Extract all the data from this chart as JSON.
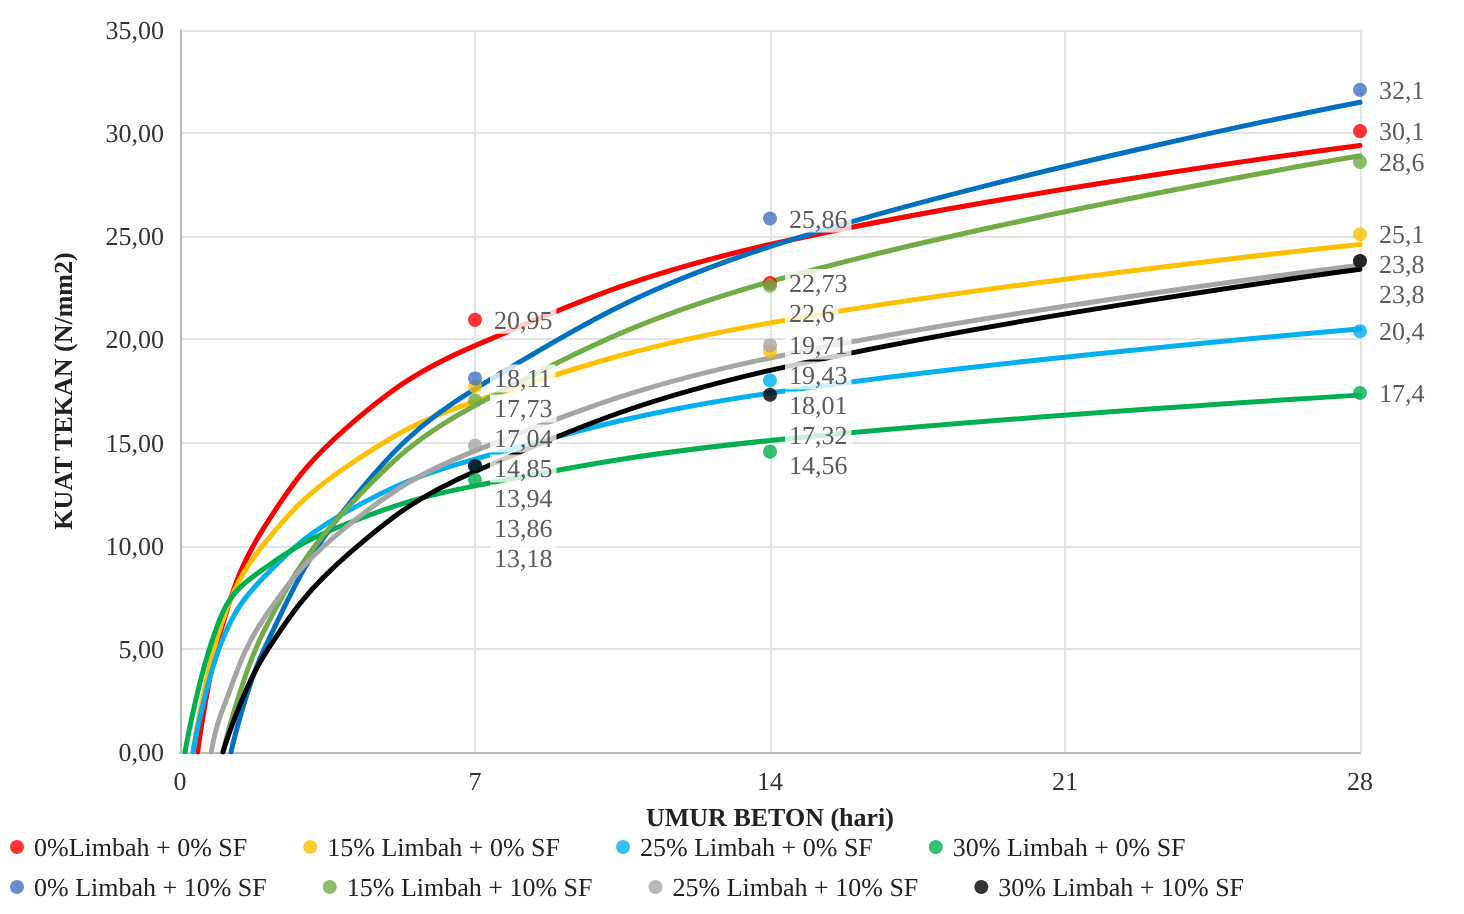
{
  "chart_data": {
    "type": "scatter",
    "xlabel": "UMUR BETON (hari)",
    "ylabel": "KUAT TEKAN (N/mm2)",
    "xlim": [
      0,
      28
    ],
    "xticks": [
      0,
      7,
      14,
      21,
      28
    ],
    "ylim": [
      0,
      35
    ],
    "yticks": [
      {
        "value": 0,
        "label": "0,00"
      },
      {
        "value": 5,
        "label": "5,00"
      },
      {
        "value": 10,
        "label": "10,00"
      },
      {
        "value": 15,
        "label": "15,00"
      },
      {
        "value": 20,
        "label": "20,00"
      },
      {
        "value": 25,
        "label": "25,00"
      },
      {
        "value": 30,
        "label": "30,00"
      },
      {
        "value": 35,
        "label": "35,00"
      }
    ],
    "grid": true,
    "legend": "bottom",
    "marker": "circle",
    "series": [
      {
        "name": "0%Limbah + 0% SF",
        "color": "#ff0000",
        "x": [
          7,
          14,
          28
        ],
        "values": [
          20.95,
          22.73,
          30.1
        ],
        "value_labels": [
          "20,95",
          "22,73",
          "30,1"
        ]
      },
      {
        "name": "15% Limbah + 0% SF",
        "color": "#ffc000",
        "x": [
          7,
          14,
          28
        ],
        "values": [
          17.73,
          19.43,
          25.1
        ],
        "value_labels": [
          "17,73",
          "19,43",
          "25,1"
        ]
      },
      {
        "name": "25% Limbah + 0% SF",
        "color": "#00b0f0",
        "x": [
          7,
          14,
          28
        ],
        "values": [
          13.94,
          18.01,
          20.4
        ],
        "value_labels": [
          "13,94",
          "18,01",
          "20,4"
        ]
      },
      {
        "name": "30% Limbah + 0% SF",
        "color": "#00b050",
        "x": [
          7,
          14,
          28
        ],
        "values": [
          13.18,
          14.56,
          17.4
        ],
        "value_labels": [
          "13,18",
          "14,56",
          "17,4"
        ]
      },
      {
        "name": "0% Limbah + 10% SF",
        "color": "#4472c4",
        "x": [
          7,
          14,
          28
        ],
        "values": [
          18.11,
          25.86,
          32.1
        ],
        "value_labels": [
          "18,11",
          "25,86",
          "32,1"
        ]
      },
      {
        "name": "15% Limbah + 10% SF",
        "color": "#70ad47",
        "x": [
          7,
          14,
          28
        ],
        "values": [
          17.04,
          22.6,
          28.6
        ],
        "value_labels": [
          "17,04",
          "22,6",
          "28,6"
        ]
      },
      {
        "name": "25% Limbah + 10% SF",
        "color": "#a5a5a5",
        "x": [
          7,
          14,
          28
        ],
        "values": [
          14.85,
          19.71,
          23.8
        ],
        "value_labels": [
          "14,85",
          "19,71",
          "23,8"
        ]
      },
      {
        "name": "30% Limbah + 10% SF",
        "color": "#000000",
        "x": [
          7,
          14,
          28
        ],
        "values": [
          13.86,
          17.32,
          23.8
        ],
        "value_labels": [
          "13,86",
          "17,32",
          "23,8"
        ]
      },
      {
        "type": "line",
        "color": "#ff0000",
        "marker": "none",
        "x": [
          0.42,
          1,
          2,
          4,
          7,
          14,
          28
        ],
        "values": [
          0,
          6.1,
          10.9,
          15.8,
          19.7,
          24.6,
          29.4
        ]
      },
      {
        "type": "line",
        "color": "#ffc000",
        "marker": "none",
        "x": [
          0.31,
          1,
          2,
          4,
          7,
          14,
          28
        ],
        "values": [
          0,
          6.3,
          10.1,
          13.9,
          17.0,
          20.8,
          24.6
        ]
      },
      {
        "type": "line",
        "color": "#00b0f0",
        "marker": "none",
        "x": [
          0.31,
          1,
          2,
          4,
          7,
          14,
          28
        ],
        "values": [
          0,
          5.4,
          8.5,
          11.7,
          14.2,
          17.4,
          20.5
        ]
      },
      {
        "type": "line",
        "color": "#00b050",
        "marker": "none",
        "x": [
          0.12,
          1,
          2,
          4,
          7,
          14,
          28
        ],
        "values": [
          0,
          6.7,
          8.9,
          11.1,
          12.9,
          15.1,
          17.3
        ]
      },
      {
        "type": "line",
        "color": "#0070c0",
        "marker": "none",
        "x": [
          1.21,
          2,
          4,
          7,
          14,
          28
        ],
        "values": [
          0,
          5.0,
          12.0,
          17.6,
          24.5,
          31.5
        ]
      },
      {
        "type": "line",
        "color": "#70ad47",
        "marker": "none",
        "x": [
          1.02,
          2,
          4,
          7,
          14,
          28
        ],
        "values": [
          0,
          5.9,
          11.9,
          16.8,
          22.8,
          28.9
        ]
      },
      {
        "type": "line",
        "color": "#a5a5a5",
        "marker": "none",
        "x": [
          0.74,
          1,
          2,
          4,
          7,
          14,
          28
        ],
        "values": [
          0,
          2.0,
          6.5,
          11.0,
          14.6,
          19.1,
          23.6
        ]
      },
      {
        "type": "line",
        "color": "#000000",
        "marker": "none",
        "x": [
          1.02,
          2,
          4,
          7,
          14,
          28
        ],
        "values": [
          0,
          4.7,
          9.6,
          13.6,
          18.5,
          23.4
        ]
      }
    ]
  }
}
